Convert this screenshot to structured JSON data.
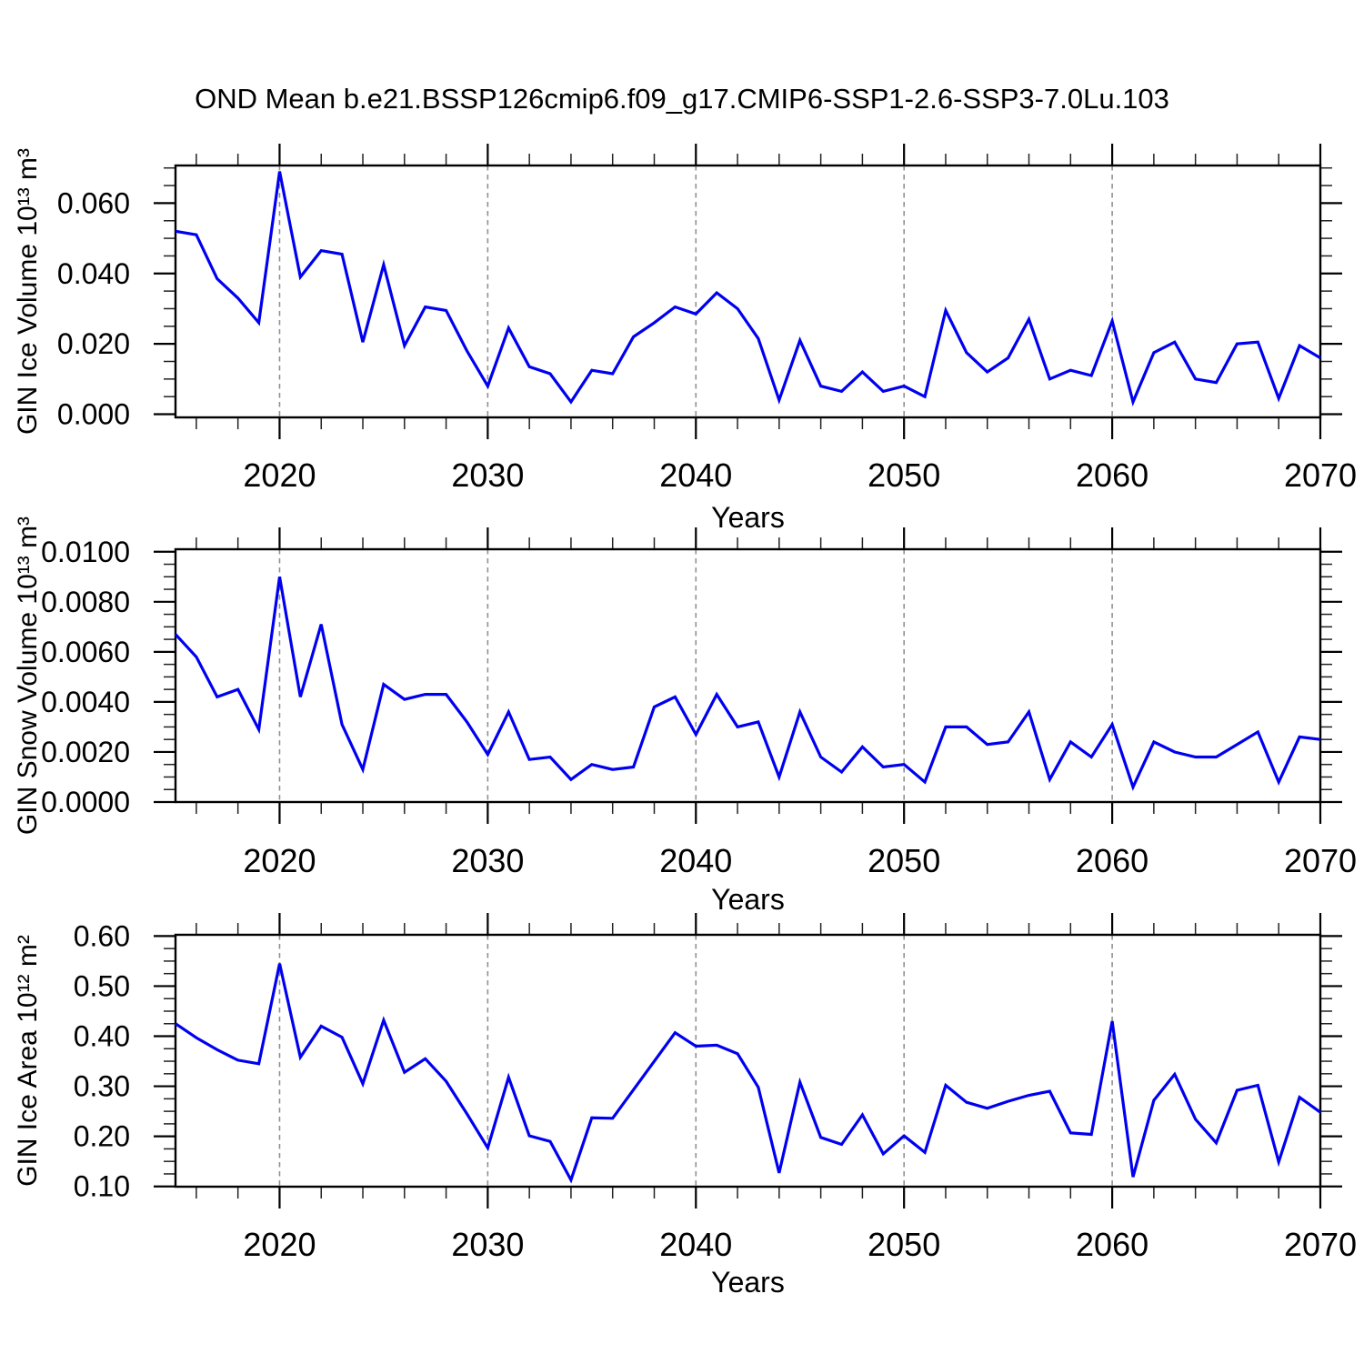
{
  "title": "OND Mean b.e21.BSSP126cmip6.f09_g17.CMIP6-SSP1-2.6-SSP3-7.0Lu.103",
  "figure": {
    "background": "#ffffff",
    "line_color": "#0000f0",
    "axis_color": "#000000",
    "gridline_color": "#919191"
  },
  "chart_data": [
    {
      "type": "line",
      "panel": "gin-ice-volume",
      "ylabel": "GIN Ice Volume 10¹³ m³",
      "xlabel": "Years",
      "x_years": {
        "start": 2015,
        "end": 2070,
        "step": 1
      },
      "values": [
        0.052,
        0.051,
        0.0385,
        0.033,
        0.026,
        0.069,
        0.039,
        0.0465,
        0.0455,
        0.0205,
        0.0425,
        0.0195,
        0.0305,
        0.0295,
        0.018,
        0.008,
        0.0245,
        0.0135,
        0.0115,
        0.0035,
        0.0125,
        0.0115,
        0.022,
        0.026,
        0.0305,
        0.0285,
        0.0345,
        0.03,
        0.0215,
        0.004,
        0.021,
        0.008,
        0.0065,
        0.012,
        0.0065,
        0.008,
        0.005,
        0.0295,
        0.0175,
        0.012,
        0.016,
        0.027,
        0.01,
        0.0125,
        0.011,
        0.0265,
        0.0035,
        0.0175,
        0.0205,
        0.01,
        0.009,
        0.02,
        0.0205,
        0.0045,
        0.0195,
        0.016
      ],
      "xlim": [
        2015,
        2070
      ],
      "ylim": [
        -0.0009,
        0.0707
      ],
      "xticks": [
        2020,
        2030,
        2040,
        2050,
        2060,
        2070
      ],
      "xtick_labels": [
        "2020",
        "2030",
        "2040",
        "2050",
        "2060",
        "2070"
      ],
      "x_minor_step": 2,
      "yticks": [
        0.0,
        0.02,
        0.04,
        0.06
      ],
      "ytick_labels": [
        "0.000",
        "0.020",
        "0.040",
        "0.060"
      ],
      "y_minor_step": 0.005,
      "grid_x": [
        2020,
        2030,
        2040,
        2050,
        2060
      ],
      "grid_style": "dashed-vertical",
      "legend": "none"
    },
    {
      "type": "line",
      "panel": "gin-snow-volume",
      "ylabel": "GIN Snow Volume 10¹³ m³",
      "xlabel": "Years",
      "x_years": {
        "start": 2015,
        "end": 2070,
        "step": 1
      },
      "values": [
        0.0067,
        0.0058,
        0.0042,
        0.0045,
        0.0029,
        0.009,
        0.0042,
        0.0071,
        0.0031,
        0.0013,
        0.0047,
        0.0041,
        0.0043,
        0.0043,
        0.0032,
        0.0019,
        0.0036,
        0.0017,
        0.0018,
        0.0009,
        0.0015,
        0.0013,
        0.0014,
        0.0038,
        0.0042,
        0.0027,
        0.0043,
        0.003,
        0.0032,
        0.001,
        0.0036,
        0.0018,
        0.0012,
        0.0022,
        0.0014,
        0.0015,
        0.0008,
        0.003,
        0.003,
        0.0023,
        0.0024,
        0.0036,
        0.0009,
        0.0024,
        0.0018,
        0.0031,
        0.0006,
        0.0024,
        0.002,
        0.0018,
        0.0018,
        0.0023,
        0.0028,
        0.0008,
        0.0026,
        0.0025
      ],
      "xlim": [
        2015,
        2070
      ],
      "ylim": [
        0.0,
        0.0101
      ],
      "xticks": [
        2020,
        2030,
        2040,
        2050,
        2060,
        2070
      ],
      "xtick_labels": [
        "2020",
        "2030",
        "2040",
        "2050",
        "2060",
        "2070"
      ],
      "x_minor_step": 2,
      "yticks": [
        0.0,
        0.002,
        0.004,
        0.006,
        0.008,
        0.01
      ],
      "ytick_labels": [
        "0.0000",
        "0.0020",
        "0.0040",
        "0.0060",
        "0.0080",
        "0.0100"
      ],
      "y_minor_step": 0.0005,
      "grid_x": [
        2020,
        2030,
        2040,
        2050,
        2060
      ],
      "grid_style": "dashed-vertical",
      "legend": "none"
    },
    {
      "type": "line",
      "panel": "gin-ice-area",
      "ylabel": "GIN Ice Area 10¹² m²",
      "xlabel": "Years",
      "x_years": {
        "start": 2015,
        "end": 2070,
        "step": 1
      },
      "values": [
        0.425,
        0.397,
        0.373,
        0.352,
        0.345,
        0.545,
        0.358,
        0.42,
        0.398,
        0.305,
        0.432,
        0.328,
        0.355,
        0.31,
        0.245,
        0.177,
        0.318,
        0.201,
        0.19,
        0.113,
        0.237,
        0.236,
        0.293,
        0.35,
        0.407,
        0.38,
        0.382,
        0.365,
        0.298,
        0.127,
        0.308,
        0.198,
        0.184,
        0.243,
        0.165,
        0.201,
        0.168,
        0.302,
        0.268,
        0.256,
        0.27,
        0.282,
        0.29,
        0.207,
        0.204,
        0.43,
        0.119,
        0.272,
        0.324,
        0.234,
        0.187,
        0.292,
        0.302,
        0.149,
        0.278,
        0.248
      ],
      "xlim": [
        2015,
        2070
      ],
      "ylim": [
        0.0995,
        0.6025
      ],
      "xticks": [
        2020,
        2030,
        2040,
        2050,
        2060,
        2070
      ],
      "xtick_labels": [
        "2020",
        "2030",
        "2040",
        "2050",
        "2060",
        "2070"
      ],
      "x_minor_step": 2,
      "yticks": [
        0.1,
        0.2,
        0.3,
        0.4,
        0.5,
        0.6
      ],
      "ytick_labels": [
        "0.10",
        "0.20",
        "0.30",
        "0.40",
        "0.50",
        "0.60"
      ],
      "y_minor_step": 0.025,
      "grid_x": [
        2020,
        2030,
        2040,
        2050,
        2060
      ],
      "grid_style": "dashed-vertical",
      "legend": "none"
    }
  ]
}
